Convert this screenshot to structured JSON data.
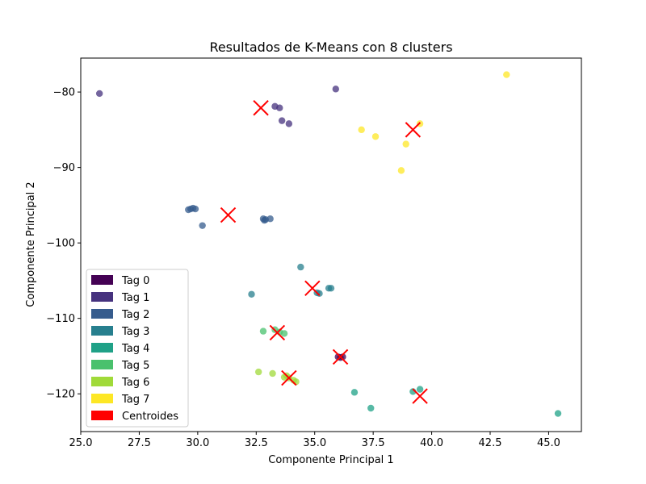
{
  "chart_data": {
    "type": "scatter",
    "title": "Resultados de K-Means con 8 clusters",
    "xlabel": "Componente Principal 1",
    "ylabel": "Componente Principal 2",
    "xlim": [
      25.0,
      46.4
    ],
    "ylim": [
      -125.0,
      -75.5
    ],
    "xticks": [
      25.0,
      27.5,
      30.0,
      32.5,
      35.0,
      37.5,
      40.0,
      42.5,
      45.0
    ],
    "xtick_labels": [
      "25.0",
      "27.5",
      "30.0",
      "32.5",
      "35.0",
      "37.5",
      "40.0",
      "42.5",
      "45.0"
    ],
    "yticks": [
      -80,
      -90,
      -100,
      -110,
      -120
    ],
    "ytick_labels": [
      "−80",
      "−90",
      "−100",
      "−110",
      "−120"
    ],
    "grid": false,
    "legend_position": "lower-left",
    "series": [
      {
        "name": "Tag 0",
        "color": "#440154",
        "points": [
          [
            36.0,
            -115.1
          ],
          [
            36.2,
            -115.1
          ],
          [
            36.1,
            -115.2
          ]
        ]
      },
      {
        "name": "Tag 1",
        "color": "#46327e",
        "points": [
          [
            25.8,
            -80.2
          ],
          [
            35.9,
            -79.6
          ],
          [
            33.3,
            -81.9
          ],
          [
            33.5,
            -82.1
          ],
          [
            33.6,
            -83.8
          ],
          [
            33.9,
            -84.2
          ]
        ]
      },
      {
        "name": "Tag 2",
        "color": "#365c8d",
        "points": [
          [
            29.6,
            -95.6
          ],
          [
            29.7,
            -95.5
          ],
          [
            29.8,
            -95.4
          ],
          [
            29.9,
            -95.5
          ],
          [
            30.2,
            -97.7
          ],
          [
            32.8,
            -96.8
          ],
          [
            32.85,
            -97.0
          ],
          [
            32.9,
            -96.9
          ],
          [
            33.1,
            -96.8
          ]
        ]
      },
      {
        "name": "Tag 3",
        "color": "#277f8e",
        "points": [
          [
            34.4,
            -103.2
          ],
          [
            32.3,
            -106.8
          ],
          [
            35.1,
            -106.6
          ],
          [
            35.2,
            -106.7
          ],
          [
            35.6,
            -106.0
          ],
          [
            35.7,
            -106.0
          ]
        ]
      },
      {
        "name": "Tag 4",
        "color": "#1fa187",
        "points": [
          [
            36.7,
            -119.8
          ],
          [
            37.4,
            -121.9
          ],
          [
            39.2,
            -119.7
          ],
          [
            39.5,
            -119.4
          ],
          [
            45.4,
            -122.6
          ]
        ]
      },
      {
        "name": "Tag 5",
        "color": "#4ac16d",
        "points": [
          [
            32.8,
            -111.7
          ],
          [
            33.3,
            -111.5
          ],
          [
            33.5,
            -111.8
          ],
          [
            33.7,
            -112.0
          ]
        ]
      },
      {
        "name": "Tag 6",
        "color": "#a0da39",
        "points": [
          [
            32.6,
            -117.1
          ],
          [
            33.2,
            -117.3
          ],
          [
            33.7,
            -117.8
          ],
          [
            33.8,
            -117.6
          ],
          [
            33.9,
            -117.9
          ],
          [
            34.1,
            -118.2
          ],
          [
            34.2,
            -118.4
          ]
        ]
      },
      {
        "name": "Tag 7",
        "color": "#fde725",
        "points": [
          [
            43.2,
            -77.7
          ],
          [
            37.0,
            -85.0
          ],
          [
            37.6,
            -85.9
          ],
          [
            38.9,
            -86.9
          ],
          [
            39.5,
            -84.2
          ],
          [
            38.7,
            -90.4
          ]
        ]
      }
    ],
    "centroids": {
      "name": "Centroides",
      "color": "#ff0000",
      "points": [
        [
          32.7,
          -82.1
        ],
        [
          39.2,
          -85.0
        ],
        [
          31.3,
          -96.3
        ],
        [
          34.9,
          -106.0
        ],
        [
          33.4,
          -111.9
        ],
        [
          36.1,
          -115.1
        ],
        [
          33.9,
          -117.9
        ],
        [
          39.5,
          -120.3
        ]
      ]
    }
  }
}
